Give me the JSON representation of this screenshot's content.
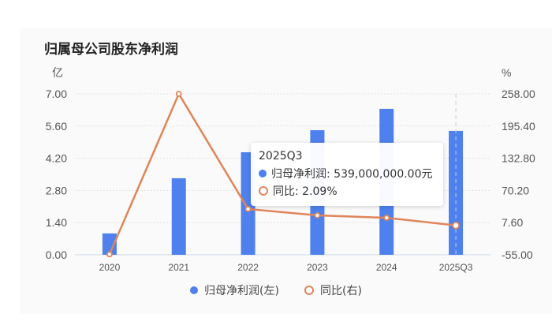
{
  "title": "归属母公司股东净利润",
  "axes": {
    "left_unit": "亿",
    "right_unit": "%",
    "left_ticks": [
      "7.00",
      "5.60",
      "4.20",
      "2.80",
      "1.40",
      "0.00"
    ],
    "right_ticks": [
      "258.00",
      "195.40",
      "132.80",
      "70.20",
      "7.60",
      "-55.00"
    ]
  },
  "legend": {
    "series1": "归母净利润(左)",
    "series2": "同比(右)"
  },
  "tooltip": {
    "title": "2025Q3",
    "row1": "归母净利润: 539,000,000.00元",
    "row2": "同比: 2.09%"
  },
  "colors": {
    "bar": "#4e80ee",
    "line": "#e0855a",
    "highlight": "#e6efff"
  },
  "chart_data": {
    "type": "bar+line",
    "title": "归属母公司股东净利润",
    "categories": [
      "2020",
      "2021",
      "2022",
      "2023",
      "2024",
      "2025Q3"
    ],
    "series": [
      {
        "name": "归母净利润(左)",
        "type": "bar",
        "axis": "left",
        "unit": "亿",
        "values": [
          0.93,
          3.33,
          4.46,
          5.42,
          6.35,
          5.39
        ]
      },
      {
        "name": "同比(右)",
        "type": "line",
        "axis": "right",
        "unit": "%",
        "values": [
          -54.0,
          258.0,
          34.0,
          21.7,
          17.0,
          2.09
        ]
      }
    ],
    "ylim_left": [
      0,
      7.0
    ],
    "ylim_right": [
      -55.0,
      258.0
    ],
    "ylabel_left": "亿",
    "ylabel_right": "%",
    "grid": true,
    "legend_position": "bottom",
    "highlighted_category": "2025Q3"
  }
}
